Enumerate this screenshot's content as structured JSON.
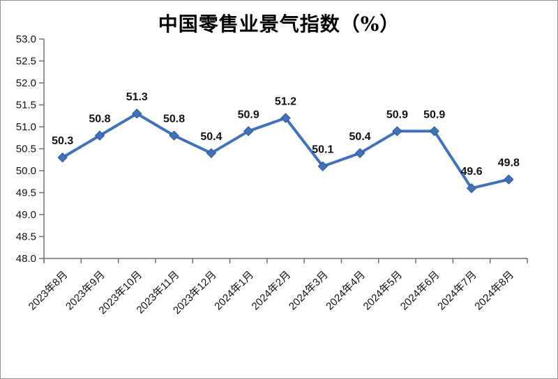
{
  "chart_data": {
    "type": "line",
    "title": "中国零售业景气指数（%）",
    "categories": [
      "2023年8月",
      "2023年9月",
      "2023年10月",
      "2023年11月",
      "2023年12月",
      "2024年1月",
      "2024年2月",
      "2024年3月",
      "2024年4月",
      "2024年5月",
      "2024年6月",
      "2024年7月",
      "2024年8月"
    ],
    "values": [
      50.3,
      50.8,
      51.3,
      50.8,
      50.4,
      50.9,
      51.2,
      50.1,
      50.4,
      50.9,
      50.9,
      49.6,
      49.8
    ],
    "data_labels": [
      "50.3",
      "50.8",
      "51.3",
      "50.8",
      "50.4",
      "50.9",
      "51.2",
      "50.1",
      "50.4",
      "50.9",
      "50.9",
      "49.6",
      "49.8"
    ],
    "ylim": [
      48.0,
      53.0
    ],
    "ytick_labels": [
      "48.0",
      "48.5",
      "49.0",
      "49.5",
      "50.0",
      "50.5",
      "51.0",
      "51.5",
      "52.0",
      "52.5",
      "53.0"
    ],
    "grid": false,
    "legend": "none",
    "xlabel": "",
    "ylabel": "",
    "marker": "diamond",
    "line_color": "#4171b9",
    "marker_stroke_color": "#2e5593",
    "axis_color": "#6e6e6e",
    "text_color": "#111111"
  }
}
